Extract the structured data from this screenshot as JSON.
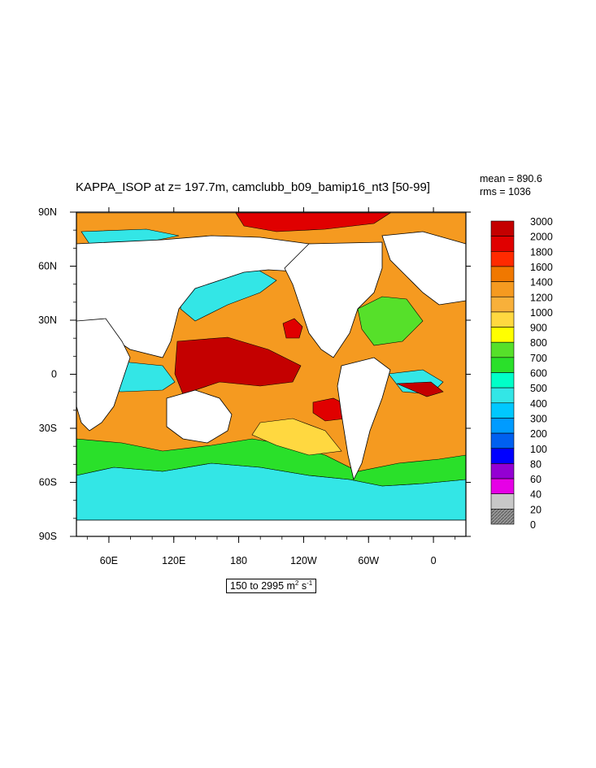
{
  "title": "KAPPA_ISOP at z= 197.7m, camclubb_b09_bamip16_nt3 [50-99]",
  "stats": {
    "mean": "mean = 890.6",
    "rms": "rms = 1036"
  },
  "range": {
    "text": "150 to 2995 m",
    "unit_sup1": "2",
    "unit_s": " s",
    "unit_sup2": "-1"
  },
  "axes": {
    "lon_ticks": [
      "60E",
      "120E",
      "180",
      "120W",
      "60W",
      "0"
    ],
    "lat_ticks": [
      "90N",
      "60N",
      "30N",
      "0",
      "30S",
      "60S",
      "90S"
    ]
  },
  "colorbar": {
    "levels": [
      "3000",
      "2000",
      "1800",
      "1600",
      "1400",
      "1200",
      "1000",
      "900",
      "800",
      "700",
      "600",
      "500",
      "400",
      "300",
      "200",
      "100",
      "80",
      "60",
      "40",
      "20",
      "0"
    ],
    "colors": [
      "#c40000",
      "#e00000",
      "#ff2a00",
      "#f07800",
      "#f59a20",
      "#f8b03a",
      "#ffd840",
      "#ffff00",
      "#56e02a",
      "#2ae02a",
      "#00ffc8",
      "#33e6e6",
      "#00c8ff",
      "#009bff",
      "#0060f0",
      "#0000ff",
      "#9400d3",
      "#e600e6",
      "#c8c8c8",
      "#888888"
    ]
  },
  "chart_data": {
    "type": "heatmap",
    "title": "KAPPA_ISOP at z= 197.7m, camclubb_b09_bamip16_nt3 [50-99]",
    "xlabel": "",
    "ylabel": "",
    "x_ticks": [
      "60E",
      "120E",
      "180",
      "120W",
      "60W",
      "0"
    ],
    "y_ticks": [
      "90N",
      "60N",
      "30N",
      "0",
      "30S",
      "60S",
      "90S"
    ],
    "contour_levels": [
      0,
      20,
      40,
      60,
      80,
      100,
      200,
      300,
      400,
      500,
      600,
      700,
      800,
      900,
      1000,
      1200,
      1400,
      1600,
      1800,
      2000,
      3000
    ],
    "mean": 890.6,
    "rms": 1036,
    "min": 150,
    "max": 2995,
    "units": "m2 s-1"
  }
}
